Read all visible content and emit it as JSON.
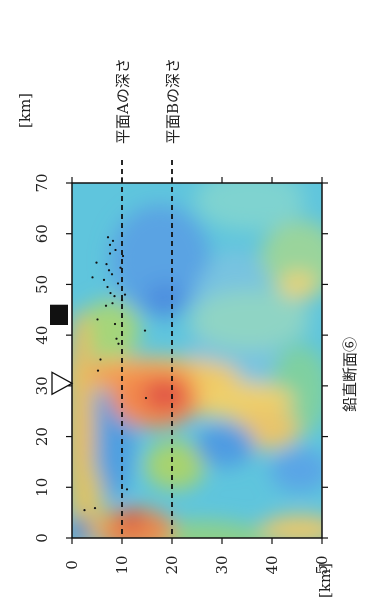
{
  "figure": {
    "units": {
      "left": "[km]",
      "bottom": "[km]"
    },
    "section_label": "鉛直断面⑥",
    "plane_labels": [
      {
        "id": "plane-a",
        "text": "平面Aの深さ",
        "depth": 10
      },
      {
        "id": "plane-b",
        "text": "平面Bの深さ",
        "depth": 20
      }
    ],
    "distance_ticks": [
      0,
      10,
      20,
      30,
      40,
      50,
      60,
      70
    ],
    "depth_ticks": [
      0,
      10,
      20,
      30,
      40,
      50
    ],
    "volcano_distance_km": 30.5,
    "station_block_distance_km": [
      42,
      46
    ],
    "earthquake_points": [
      [
        5.5,
        2.5
      ],
      [
        5.9,
        4.6
      ],
      [
        9.6,
        11.0
      ],
      [
        27.6,
        14.8
      ],
      [
        33.0,
        5.2
      ],
      [
        35.2,
        5.7
      ],
      [
        38.3,
        9.3
      ],
      [
        39.3,
        8.9
      ],
      [
        40.9,
        14.6
      ],
      [
        42.2,
        8.6
      ],
      [
        43.1,
        5.1
      ],
      [
        45.8,
        6.8
      ],
      [
        46.3,
        8.1
      ],
      [
        46.9,
        10.0
      ],
      [
        47.7,
        8.5
      ],
      [
        48.0,
        10.6
      ],
      [
        48.3,
        7.7
      ],
      [
        49.5,
        7.1
      ],
      [
        50.2,
        9.2
      ],
      [
        50.9,
        6.4
      ],
      [
        51.4,
        4.1
      ],
      [
        52.0,
        8.0
      ],
      [
        52.8,
        7.4
      ],
      [
        53.3,
        9.7
      ],
      [
        54.0,
        6.9
      ],
      [
        54.3,
        4.9
      ],
      [
        55.6,
        10.2
      ],
      [
        56.1,
        7.6
      ],
      [
        56.8,
        8.7
      ],
      [
        57.8,
        7.6
      ],
      [
        58.6,
        8.2
      ],
      [
        59.3,
        7.2
      ]
    ]
  }
}
